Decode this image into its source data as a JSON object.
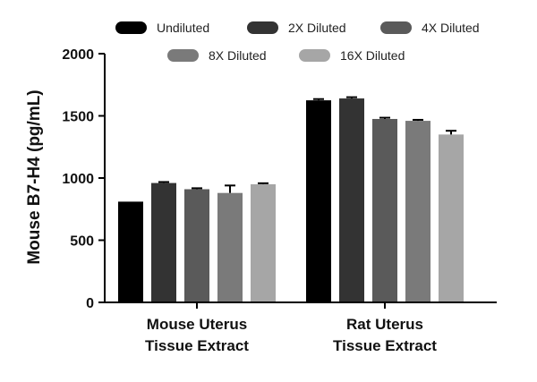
{
  "chart_data": {
    "type": "bar",
    "title": "",
    "ylabel": "Mouse B7-H4 (pg/mL)",
    "xlabel": "",
    "ylim": [
      0,
      2000
    ],
    "yticks": [
      "0",
      "500",
      "1000",
      "1500",
      "2000"
    ],
    "grid": false,
    "legend_position": "top",
    "categories": [
      [
        "Mouse Uterus",
        "Tissue Extract"
      ],
      [
        "Rat Uterus",
        "Tissue Extract"
      ]
    ],
    "series": [
      {
        "name": "Undiluted",
        "color": "#000000",
        "values": [
          810,
          1625
        ],
        "errors": [
          0,
          10
        ]
      },
      {
        "name": "2X Diluted",
        "color": "#333333",
        "values": [
          960,
          1640
        ],
        "errors": [
          8,
          10
        ]
      },
      {
        "name": "4X Diluted",
        "color": "#5a5a5a",
        "values": [
          910,
          1475
        ],
        "errors": [
          8,
          10
        ]
      },
      {
        "name": "8X Diluted",
        "color": "#7a7a7a",
        "values": [
          880,
          1460
        ],
        "errors": [
          60,
          8
        ]
      },
      {
        "name": "16X Diluted",
        "color": "#a6a6a6",
        "values": [
          950,
          1350
        ],
        "errors": [
          8,
          30
        ]
      }
    ]
  }
}
